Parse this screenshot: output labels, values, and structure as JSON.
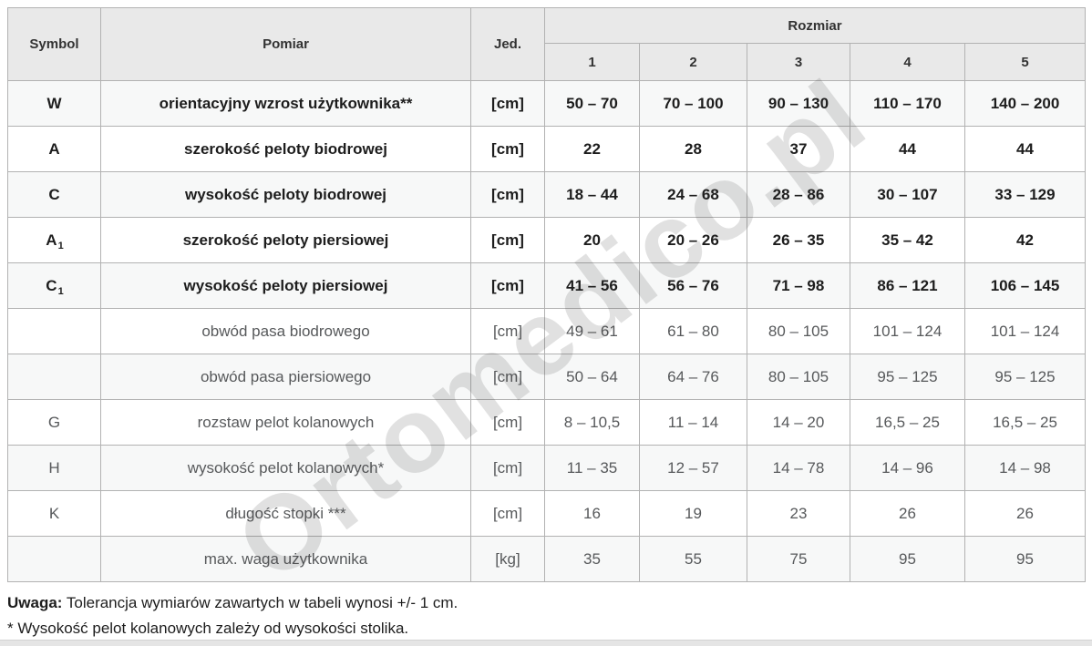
{
  "table": {
    "headers": {
      "symbol": "Symbol",
      "pomiar": "Pomiar",
      "jed": "Jed.",
      "rozmiar": "Rozmiar",
      "sizes": [
        "1",
        "2",
        "3",
        "4",
        "5"
      ]
    },
    "rows": [
      {
        "symbol": "W",
        "sub": "",
        "pomiar": "orientacyjny wzrost użytkownika**",
        "jed": "[cm]",
        "bold": true,
        "values": [
          "50 – 70",
          "70 – 100",
          "90 – 130",
          "110 – 170",
          "140 – 200"
        ]
      },
      {
        "symbol": "A",
        "sub": "",
        "pomiar": "szerokość peloty biodrowej",
        "jed": "[cm]",
        "bold": true,
        "values": [
          "22",
          "28",
          "37",
          "44",
          "44"
        ]
      },
      {
        "symbol": "C",
        "sub": "",
        "pomiar": "wysokość peloty biodrowej",
        "jed": "[cm]",
        "bold": true,
        "values": [
          "18 – 44",
          "24 – 68",
          "28 – 86",
          "30 – 107",
          "33 – 129"
        ]
      },
      {
        "symbol": "A",
        "sub": "1",
        "pomiar": "szerokość peloty piersiowej",
        "jed": "[cm]",
        "bold": true,
        "values": [
          "20",
          "20 – 26",
          "26 – 35",
          "35 – 42",
          "42"
        ]
      },
      {
        "symbol": "C",
        "sub": "1",
        "pomiar": "wysokość peloty piersiowej",
        "jed": "[cm]",
        "bold": true,
        "values": [
          "41 – 56",
          "56 – 76",
          "71 – 98",
          "86 – 121",
          "106 – 145"
        ]
      },
      {
        "symbol": "",
        "sub": "",
        "pomiar": "obwód pasa biodrowego",
        "jed": "[cm]",
        "bold": false,
        "values": [
          "49 – 61",
          "61 – 80",
          "80 – 105",
          "101 – 124",
          "101 – 124"
        ]
      },
      {
        "symbol": "",
        "sub": "",
        "pomiar": "obwód pasa piersiowego",
        "jed": "[cm]",
        "bold": false,
        "values": [
          "50 – 64",
          "64 – 76",
          "80 – 105",
          "95 – 125",
          "95 – 125"
        ]
      },
      {
        "symbol": "G",
        "sub": "",
        "pomiar": "rozstaw pelot kolanowych",
        "jed": "[cm]",
        "bold": false,
        "values": [
          "8 – 10,5",
          "11 – 14",
          "14 – 20",
          "16,5 – 25",
          "16,5 – 25"
        ]
      },
      {
        "symbol": "H",
        "sub": "",
        "pomiar": "wysokość pelot kolanowych*",
        "jed": "[cm]",
        "bold": false,
        "values": [
          "11 – 35",
          "12 – 57",
          "14 – 78",
          "14 – 96",
          "14 – 98"
        ]
      },
      {
        "symbol": "K",
        "sub": "",
        "pomiar": "długość stopki ***",
        "jed": "[cm]",
        "bold": false,
        "values": [
          "16",
          "19",
          "23",
          "26",
          "26"
        ]
      },
      {
        "symbol": "",
        "sub": "",
        "pomiar": "max. waga użytkownika",
        "jed": "[kg]",
        "bold": false,
        "values": [
          "35",
          "55",
          "75",
          "95",
          "95"
        ]
      }
    ]
  },
  "notes": {
    "note1_label": "Uwaga:",
    "note1_text": " Tolerancja wymiarów zawartych w tabeli wynosi +/- 1 cm.",
    "note2": "* Wysokość pelot kolanowych zależy od wysokości stolika."
  },
  "watermark": {
    "text": "Ortomedico.pl"
  },
  "colors": {
    "header_bg": "#e9e9e9",
    "row_alt_bg": "#f7f8f8",
    "border": "#b2b2b2",
    "text_bold": "#1d1d1d",
    "text_regular": "#57595b",
    "watermark": "rgba(55,55,55,0.15)"
  }
}
